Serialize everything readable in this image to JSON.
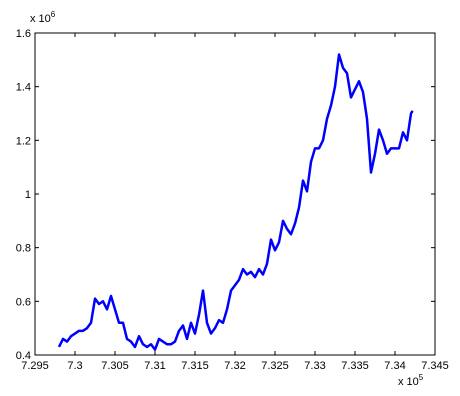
{
  "chart_data": {
    "type": "line",
    "x_multiplier": {
      "base": "x 10",
      "exp": "5"
    },
    "y_multiplier": {
      "base": "x 10",
      "exp": "6"
    },
    "xlim": [
      7.295,
      7.345
    ],
    "xticks": [
      7.295,
      7.3,
      7.305,
      7.31,
      7.315,
      7.32,
      7.325,
      7.33,
      7.335,
      7.34,
      7.345
    ],
    "ylim": [
      0.4,
      1.6
    ],
    "yticks": [
      0.4,
      0.6,
      0.8,
      1,
      1.2,
      1.4,
      1.6
    ],
    "grid": false,
    "series": [
      {
        "color": "#0000ff",
        "x": [
          7.298,
          7.2985,
          7.299,
          7.2995,
          7.3,
          7.3005,
          7.301,
          7.3015,
          7.302,
          7.3025,
          7.303,
          7.3035,
          7.304,
          7.3045,
          7.305,
          7.3055,
          7.306,
          7.3065,
          7.307,
          7.3075,
          7.308,
          7.3085,
          7.309,
          7.3095,
          7.31,
          7.3105,
          7.311,
          7.3115,
          7.312,
          7.3125,
          7.313,
          7.3135,
          7.314,
          7.3145,
          7.315,
          7.3155,
          7.316,
          7.3165,
          7.317,
          7.3175,
          7.318,
          7.3185,
          7.319,
          7.3195,
          7.32,
          7.3205,
          7.321,
          7.3215,
          7.322,
          7.3225,
          7.323,
          7.3235,
          7.324,
          7.3245,
          7.325,
          7.3255,
          7.326,
          7.3265,
          7.327,
          7.3275,
          7.328,
          7.3285,
          7.329,
          7.3295,
          7.33,
          7.3305,
          7.331,
          7.3315,
          7.332,
          7.3325,
          7.333,
          7.3335,
          7.334,
          7.3345,
          7.335,
          7.3355,
          7.336,
          7.3365,
          7.337,
          7.3375,
          7.338,
          7.3385,
          7.339,
          7.3395,
          7.34,
          7.3405,
          7.341,
          7.3415,
          7.342,
          7.3422
        ],
        "values": [
          0.43,
          0.46,
          0.45,
          0.47,
          0.48,
          0.49,
          0.49,
          0.5,
          0.52,
          0.61,
          0.59,
          0.6,
          0.57,
          0.62,
          0.57,
          0.52,
          0.52,
          0.46,
          0.45,
          0.43,
          0.47,
          0.44,
          0.43,
          0.44,
          0.42,
          0.46,
          0.45,
          0.44,
          0.44,
          0.45,
          0.49,
          0.51,
          0.46,
          0.52,
          0.48,
          0.55,
          0.64,
          0.52,
          0.48,
          0.5,
          0.53,
          0.52,
          0.57,
          0.64,
          0.66,
          0.68,
          0.72,
          0.7,
          0.71,
          0.69,
          0.72,
          0.7,
          0.74,
          0.83,
          0.79,
          0.82,
          0.9,
          0.87,
          0.85,
          0.89,
          0.95,
          1.05,
          1.01,
          1.12,
          1.17,
          1.17,
          1.2,
          1.28,
          1.33,
          1.4,
          1.52,
          1.47,
          1.45,
          1.36,
          1.39,
          1.42,
          1.38,
          1.28,
          1.08,
          1.15,
          1.24,
          1.2,
          1.15,
          1.17,
          1.17,
          1.17,
          1.23,
          1.2,
          1.3,
          1.31
        ]
      }
    ]
  }
}
